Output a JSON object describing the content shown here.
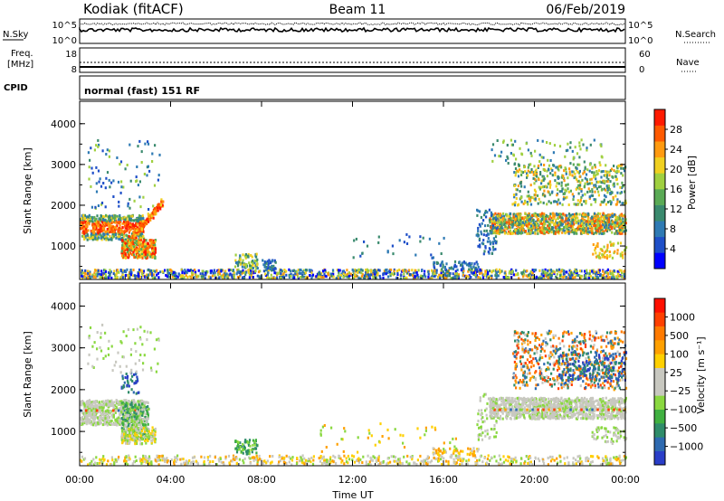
{
  "header": {
    "station": "Kodiak (fitACF)",
    "beam": "Beam 11",
    "date": "06/Feb/2019"
  },
  "noise_panel": {
    "left_label": "N.Sky",
    "right_label": "N.Search",
    "left_ticks": [
      "10^5",
      "10^0"
    ],
    "right_ticks": [
      "10^5",
      "10^0"
    ]
  },
  "freq_panel": {
    "left_label_line1": "Freq.",
    "left_label_line2": "[MHz]",
    "right_label": "Nave",
    "left_ticks": [
      "18",
      "8"
    ],
    "right_ticks": [
      "60",
      "0"
    ]
  },
  "cpid": {
    "label": "CPID",
    "mode": "normal (fast) 151 RF"
  },
  "chart_data": [
    {
      "type": "heatmap",
      "name": "power",
      "ylabel": "Slant Range [km]",
      "yticks": [
        "4000",
        "3000",
        "2000",
        "1000"
      ],
      "ylim": [
        180,
        4550
      ],
      "colorbar_label": "Power [dB]",
      "colorbar_ticks": [
        "28",
        "24",
        "20",
        "16",
        "12",
        "8",
        "4"
      ],
      "colors": [
        "#0000ff",
        "#1e4fc8",
        "#2e7ab4",
        "#3a8a6e",
        "#5aaa55",
        "#a0d040",
        "#f0d020",
        "#ff9a10",
        "#ff5a00",
        "#ff1a00"
      ]
    },
    {
      "type": "heatmap",
      "name": "velocity",
      "ylabel": "Slant Range [km]",
      "yticks": [
        "4000",
        "3000",
        "2000",
        "1000"
      ],
      "ylim": [
        180,
        4550
      ],
      "colorbar_label": "Velocity [m s⁻¹]",
      "colorbar_ticks": [
        "1000",
        "500",
        "100",
        "25",
        "−25",
        "−100",
        "−500",
        "−1000"
      ],
      "colors": [
        "#2a3ec8",
        "#2e6ab0",
        "#2f8c6a",
        "#40b040",
        "#8ad840",
        "#c8c8c0",
        "#c8c8c0",
        "#ffd000",
        "#ffa000",
        "#ff7a00",
        "#ff4000",
        "#ff1000"
      ]
    }
  ],
  "xaxis": {
    "label": "Time UT",
    "ticks": [
      "00:00",
      "04:00",
      "08:00",
      "12:00",
      "16:00",
      "20:00",
      "00:00"
    ]
  }
}
